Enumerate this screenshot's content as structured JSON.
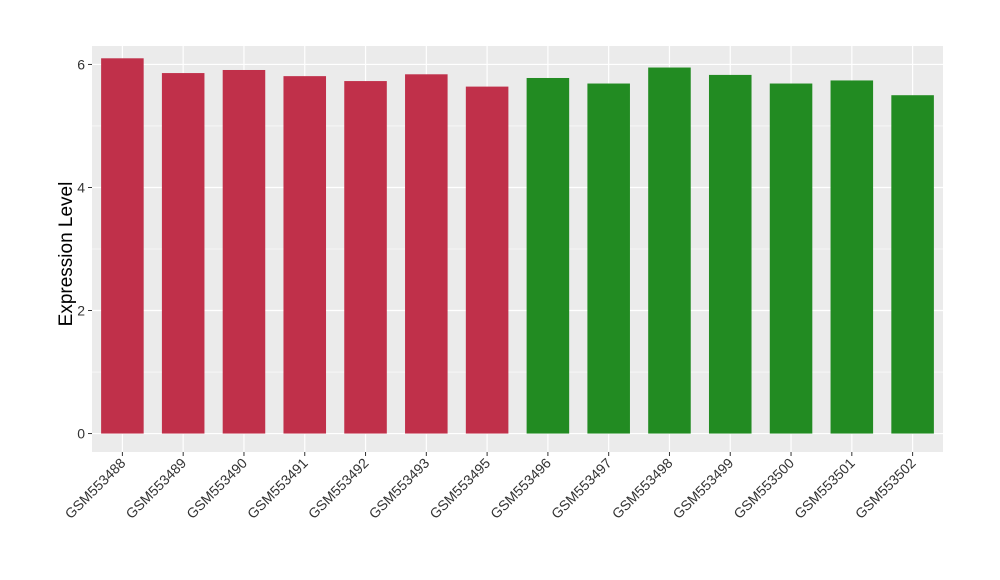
{
  "chart_data": {
    "type": "bar",
    "title": "",
    "xlabel": "",
    "ylabel": "Expression Level",
    "ylim": [
      -0.3,
      6.3
    ],
    "yticks": [
      0,
      2,
      4,
      6
    ],
    "grid": true,
    "legend": "none",
    "categories": [
      "GSM553488",
      "GSM553489",
      "GSM553490",
      "GSM553491",
      "GSM553492",
      "GSM553493",
      "GSM553495",
      "GSM553496",
      "GSM553497",
      "GSM553498",
      "GSM553499",
      "GSM553500",
      "GSM553501",
      "GSM553502"
    ],
    "values": [
      6.1,
      5.86,
      5.91,
      5.81,
      5.73,
      5.84,
      5.64,
      5.78,
      5.69,
      5.95,
      5.83,
      5.69,
      5.74,
      5.5
    ],
    "bar_colors": [
      "#c0304a",
      "#c0304a",
      "#c0304a",
      "#c0304a",
      "#c0304a",
      "#c0304a",
      "#c0304a",
      "#228b22",
      "#228b22",
      "#228b22",
      "#228b22",
      "#228b22",
      "#228b22",
      "#228b22"
    ],
    "panel_background": "#ebebeb",
    "gridline_color": "#ffffff"
  }
}
